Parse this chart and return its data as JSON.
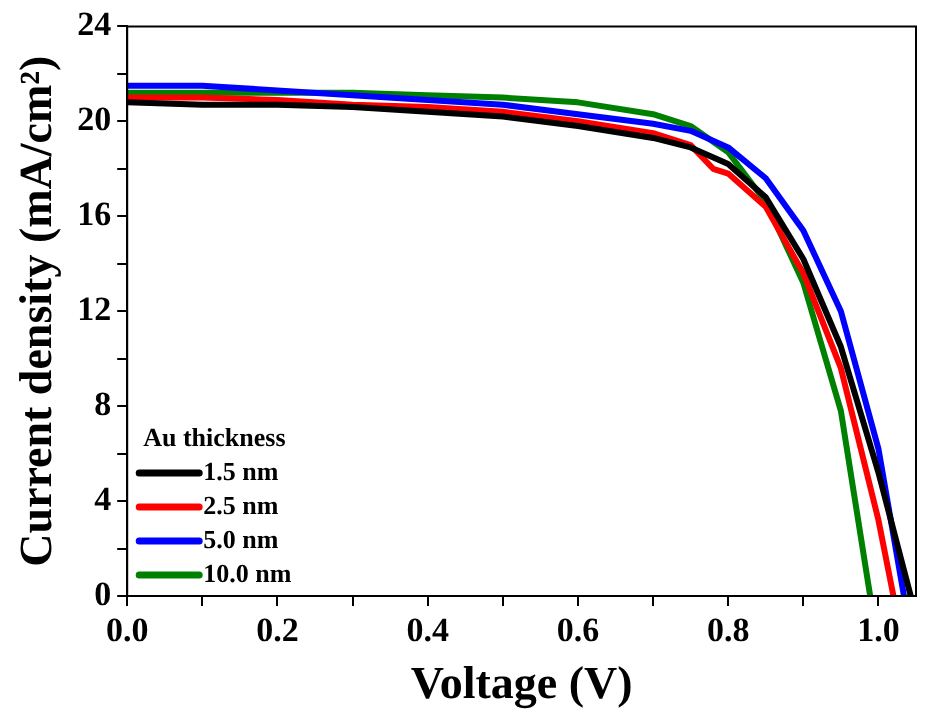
{
  "chart_data": {
    "type": "line",
    "xlabel": "Voltage (V)",
    "ylabel": "Current density (mA/cm²)",
    "legend_title": "Au thickness",
    "legend": "bottom left",
    "grid": false,
    "marker": "none",
    "line_style": "solid",
    "xlim": [
      0,
      1.05
    ],
    "ylim": [
      0,
      24
    ],
    "xticks": [
      {
        "value": 0,
        "label": "0.0"
      },
      {
        "value": 0.1,
        "label": null
      },
      {
        "value": 0.2,
        "label": "0.2"
      },
      {
        "value": 0.3,
        "label": null
      },
      {
        "value": 0.4,
        "label": "0.4"
      },
      {
        "value": 0.5,
        "label": null
      },
      {
        "value": 0.6,
        "label": "0.6"
      },
      {
        "value": 0.7,
        "label": null
      },
      {
        "value": 0.8,
        "label": "0.8"
      },
      {
        "value": 0.9,
        "label": null
      },
      {
        "value": 1.0,
        "label": "1.0"
      }
    ],
    "yticks": [
      0,
      {
        "value": 2,
        "label": null
      },
      4,
      {
        "value": 6,
        "label": null
      },
      8,
      {
        "value": 10,
        "label": null
      },
      12,
      {
        "value": 14,
        "label": null
      },
      16,
      {
        "value": 18,
        "label": null
      },
      20,
      {
        "value": 22,
        "label": null
      },
      24
    ],
    "series": [
      {
        "name": "1.5 nm",
        "color": "#000000",
        "x": [
          0,
          0.1,
          0.2,
          0.3,
          0.4,
          0.5,
          0.6,
          0.7,
          0.75,
          0.8,
          0.85,
          0.9,
          0.95,
          1.0,
          1.043
        ],
        "values": [
          20.8,
          20.7,
          20.7,
          20.6,
          20.4,
          20.2,
          19.8,
          19.3,
          18.9,
          18.2,
          16.8,
          14.2,
          10.5,
          5.2,
          0
        ]
      },
      {
        "name": "2.5 nm",
        "color": "#ff0000",
        "x": [
          0,
          0.1,
          0.2,
          0.3,
          0.4,
          0.5,
          0.6,
          0.7,
          0.75,
          0.78,
          0.8,
          0.85,
          0.9,
          0.95,
          1.0,
          1.02
        ],
        "values": [
          21.0,
          21.0,
          20.9,
          20.7,
          20.6,
          20.4,
          20.0,
          19.5,
          19.0,
          18.0,
          17.8,
          16.4,
          13.6,
          9.6,
          3.2,
          0
        ]
      },
      {
        "name": "5.0 nm",
        "color": "#0000ff",
        "x": [
          0,
          0.1,
          0.2,
          0.3,
          0.4,
          0.5,
          0.6,
          0.7,
          0.75,
          0.8,
          0.85,
          0.9,
          0.95,
          1.0,
          1.034
        ],
        "values": [
          21.5,
          21.5,
          21.3,
          21.1,
          20.9,
          20.7,
          20.3,
          19.9,
          19.6,
          18.9,
          17.6,
          15.4,
          12.0,
          6.2,
          0
        ]
      },
      {
        "name": "10.0 nm",
        "color": "#008000",
        "x": [
          0,
          0.1,
          0.2,
          0.3,
          0.4,
          0.5,
          0.6,
          0.7,
          0.75,
          0.8,
          0.85,
          0.9,
          0.95,
          0.989
        ],
        "values": [
          21.2,
          21.2,
          21.2,
          21.2,
          21.1,
          21.0,
          20.8,
          20.3,
          19.8,
          18.7,
          16.6,
          13.2,
          7.8,
          0
        ]
      }
    ]
  }
}
